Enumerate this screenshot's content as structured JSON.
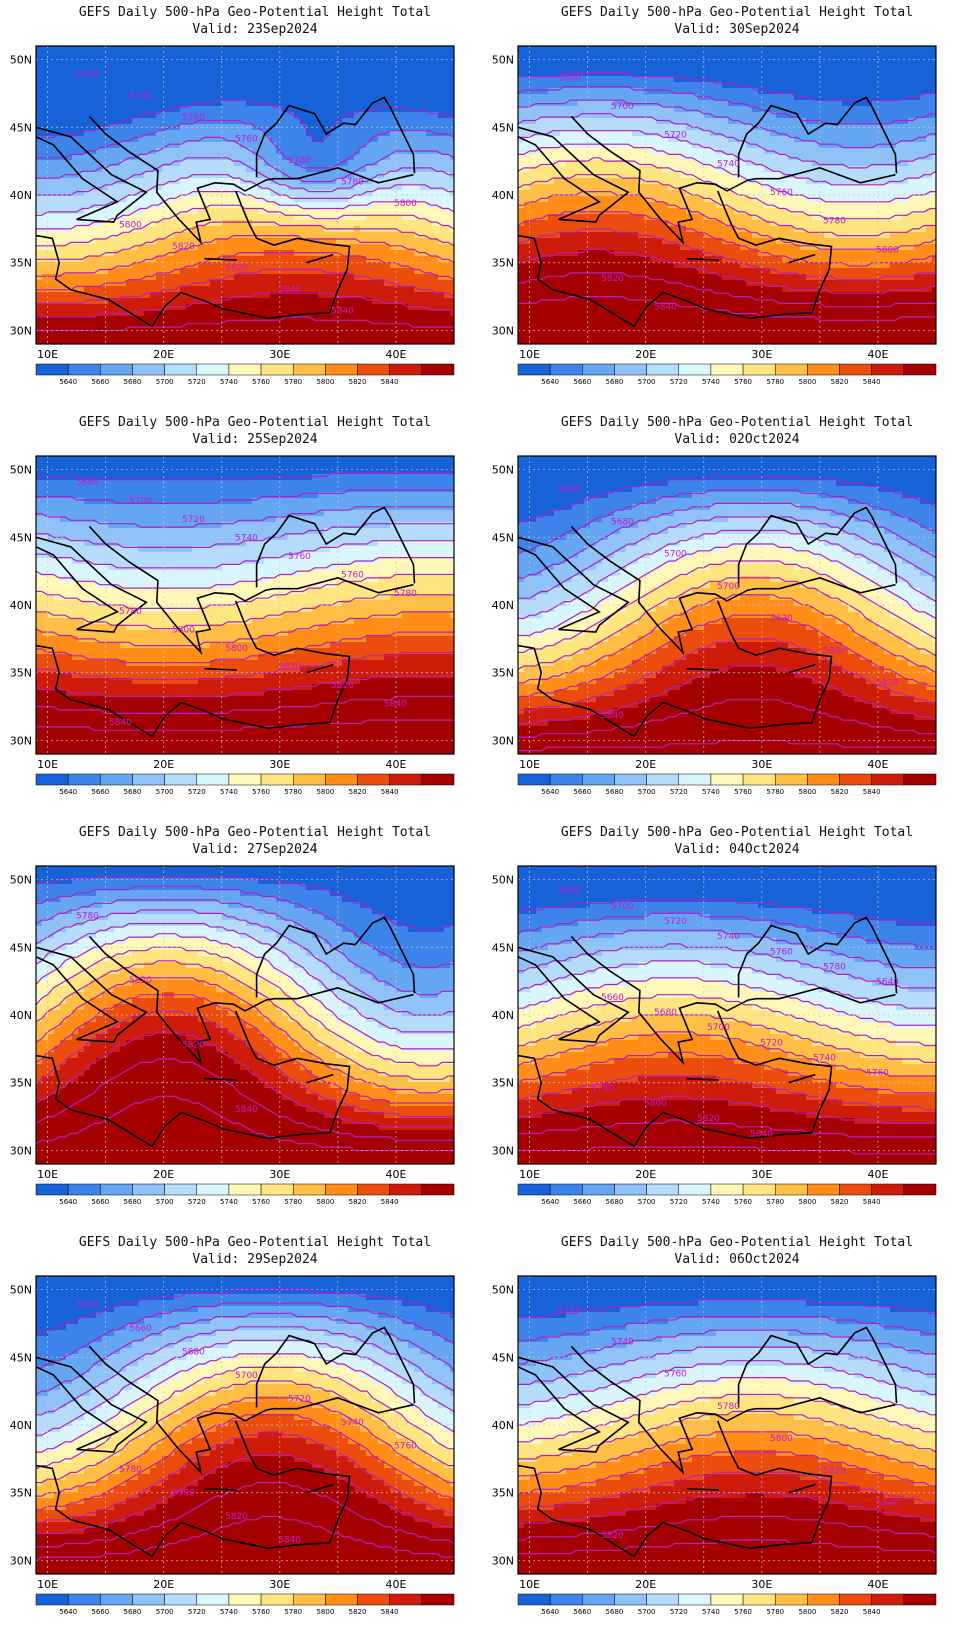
{
  "colors": {
    "levels": [
      "#1762d8",
      "#3d84ea",
      "#65a6f2",
      "#8fc2f7",
      "#b5dcfa",
      "#daf6fd",
      "#fff8b8",
      "#ffe680",
      "#ffbe44",
      "#ff8d18",
      "#ec4c0c",
      "#cf1c0a",
      "#a50000"
    ],
    "contour_line": "#b21fc4",
    "contour_label": "#c21bd4",
    "coast": "#000000",
    "grid_line": "#c8c8c8"
  },
  "colorbar_labels": [
    "5640",
    "5660",
    "5680",
    "5700",
    "5720",
    "5740",
    "5760",
    "5780",
    "5800",
    "5820",
    "5840"
  ],
  "axes": {
    "lat_labels": [
      "50N",
      "45N",
      "40N",
      "35N",
      "30N"
    ],
    "lon_labels": [
      "10E",
      "20E",
      "30E",
      "40E"
    ]
  },
  "panels": [
    {
      "title": "GEFS Daily 500-hPa Geo-Potential Height Total",
      "valid": "Valid: 23Sep2024",
      "contour_labels": [
        "5720",
        "5740",
        "5760",
        "5760",
        "5780",
        "5780",
        "5800",
        "5800",
        "5820",
        "5820",
        "5840",
        "5840"
      ],
      "field": {
        "kind": "trough",
        "base": 5700,
        "north": 5600,
        "south": 5930,
        "amp": 2.0,
        "phase": 0.25,
        "low": {
          "depth": 80,
          "lon": 33,
          "lat": 42
        }
      }
    },
    {
      "title": "GEFS Daily 500-hPa Geo-Potential Height Total",
      "valid": "Valid: 30Sep2024",
      "contour_labels": [
        "5680",
        "5700",
        "5720",
        "5740",
        "5760",
        "5780",
        "5800",
        "5820",
        "5840"
      ],
      "field": {
        "kind": "zonal",
        "base": 5760,
        "north": 5600,
        "south": 5940,
        "amp": 2.0,
        "phase": 0.6
      }
    },
    {
      "title": "GEFS Daily 500-hPa Geo-Potential Height Total",
      "valid": "Valid: 25Sep2024",
      "contour_labels": [
        "5680",
        "5700",
        "5720",
        "5740",
        "5760",
        "5760",
        "5780",
        "5780",
        "5800",
        "5800",
        "5820",
        "5820",
        "5840",
        "5840"
      ],
      "field": {
        "kind": "zonal",
        "base": 5770,
        "north": 5620,
        "south": 5930,
        "amp": 1.0,
        "phase": 0.0
      }
    },
    {
      "title": "GEFS Daily 500-hPa Geo-Potential Height Total",
      "valid": "Valid: 02Oct2024",
      "contour_labels": [
        "5680",
        "5680",
        "5700",
        "5700",
        "5720",
        "5800",
        "5820",
        "5840"
      ],
      "field": {
        "kind": "trough",
        "base": 5740,
        "north": 5620,
        "south": 5920,
        "amp": 3.0,
        "phase": 0.3
      }
    },
    {
      "title": "GEFS Daily 500-hPa Geo-Potential Height Total",
      "valid": "Valid: 27Sep2024",
      "contour_labels": [
        "5780",
        "5820",
        "5820",
        "5840"
      ],
      "field": {
        "kind": "ridge",
        "base": 5790,
        "north": 5600,
        "south": 5900,
        "amp": 4.0,
        "phase": 0.0
      }
    },
    {
      "title": "GEFS Daily 500-hPa Geo-Potential Height Total",
      "valid": "Valid: 04Oct2024",
      "contour_labels": [
        "5680",
        "5700",
        "5720",
        "5740",
        "5760",
        "5780",
        "5640",
        "5660",
        "5680",
        "5700",
        "5720",
        "5740",
        "5760",
        "5780",
        "5800",
        "5820",
        "5840"
      ],
      "field": {
        "kind": "zonal",
        "base": 5745,
        "north": 5600,
        "south": 5920,
        "amp": 1.5,
        "phase": 0.45
      }
    },
    {
      "title": "GEFS Daily 500-hPa Geo-Potential Height Total",
      "valid": "Valid: 29Sep2024",
      "contour_labels": [
        "5640",
        "5660",
        "5680",
        "5700",
        "5720",
        "5740",
        "5760",
        "5780",
        "5800",
        "5820",
        "5840"
      ],
      "field": {
        "kind": "ridge",
        "base": 5790,
        "north": 5590,
        "south": 5900,
        "amp": 3.5,
        "phase": -0.2
      }
    },
    {
      "title": "GEFS Daily 500-hPa Geo-Potential Height Total",
      "valid": "Valid: 06Oct2024",
      "contour_labels": [
        "5720",
        "5740",
        "5760",
        "5780",
        "5800",
        "5820",
        "5840",
        "5820"
      ],
      "field": {
        "kind": "zonal",
        "base": 5770,
        "north": 5600,
        "south": 5920,
        "amp": 1.5,
        "phase": 0.3
      }
    }
  ]
}
